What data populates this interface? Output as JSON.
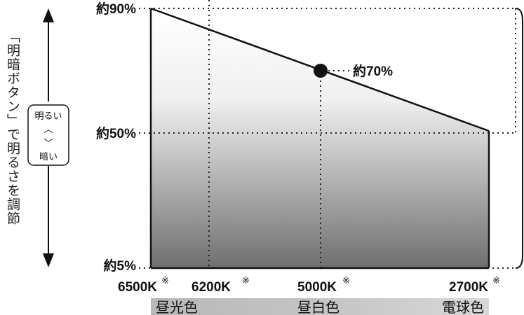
{
  "side_caption": "「明暗ボタン」で明るさを調節",
  "brightness_box": {
    "bright": "明るい",
    "up": "︿",
    "down": "﹀",
    "dark": "暗い"
  },
  "y_labels": {
    "top": "約90%",
    "mid": "約50%",
    "bottom": "約5%"
  },
  "point_label": "約70%",
  "x_labels": [
    {
      "temp": "6500K",
      "mark": "※"
    },
    {
      "temp": "6200K",
      "mark": "※"
    },
    {
      "temp": "5000K",
      "mark": "※"
    },
    {
      "temp": "2700K",
      "mark": "※"
    }
  ],
  "color_bands": [
    "昼光色",
    "昼白色",
    "電球色"
  ],
  "colors": {
    "line": "#111111",
    "fill_top": "#ffffff",
    "fill_bottom": "#6e6e6e",
    "band_left": "#b9b9b9",
    "band_right": "#d6d6d6"
  }
}
